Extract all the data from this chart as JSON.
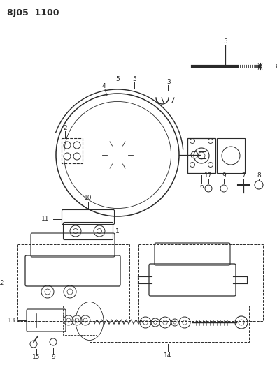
{
  "title": "8J05  1100",
  "bg_color": "#ffffff",
  "line_color": "#2a2a2a",
  "fig_width": 3.96,
  "fig_height": 5.33,
  "dpi": 100
}
